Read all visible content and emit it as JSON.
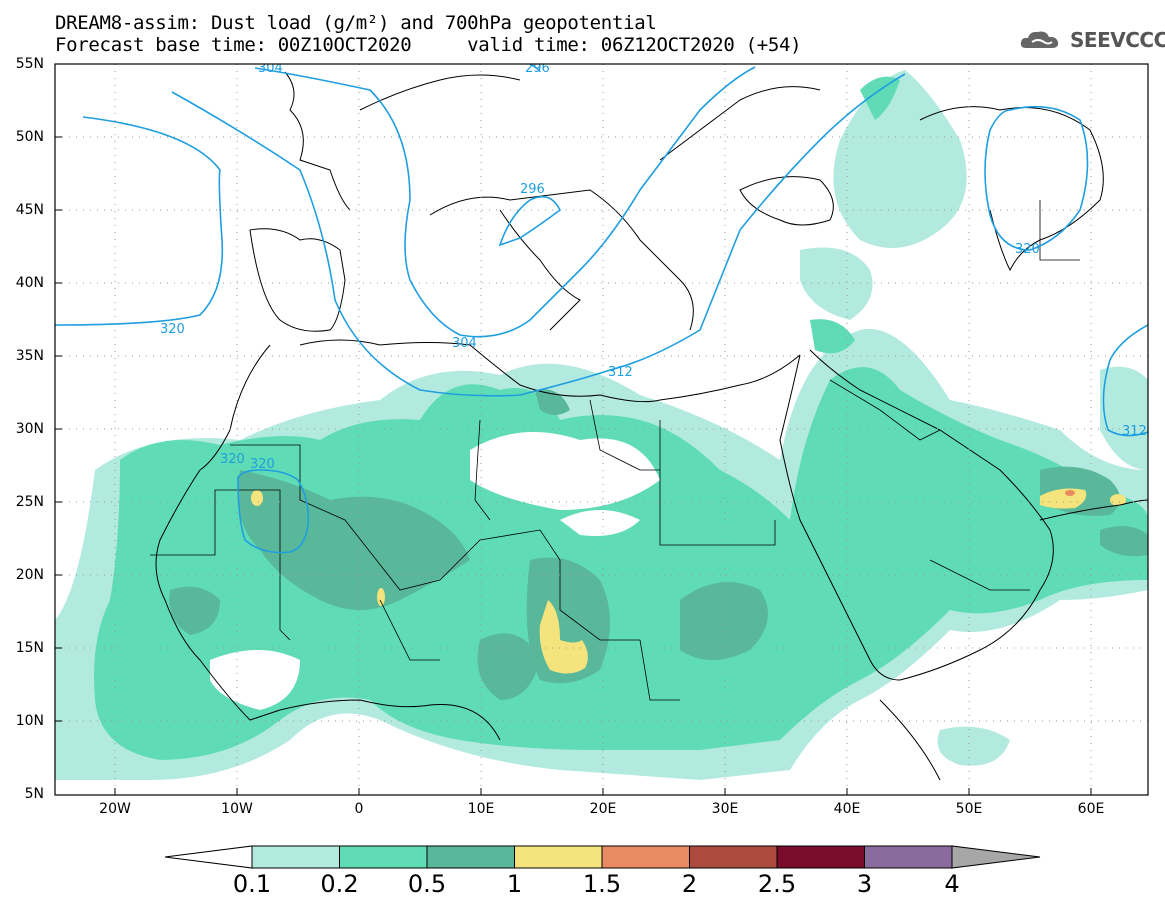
{
  "header": {
    "title_line1": "DREAM8-assim: Dust load (g/m²) and 700hPa geopotential",
    "title_line2": "Forecast base time: 00Z10OCT2020     valid time: 06Z12OCT2020 (+54)",
    "logo_text": "SEEVCCC",
    "logo_icon": "cloud-logo-icon"
  },
  "map": {
    "lat_labels": [
      "55N",
      "50N",
      "45N",
      "40N",
      "35N",
      "30N",
      "25N",
      "20N",
      "15N",
      "10N",
      "5N"
    ],
    "lon_labels": [
      "20W",
      "10W",
      "0",
      "10E",
      "20E",
      "30E",
      "40E",
      "50E",
      "60E"
    ],
    "contour_labels": [
      "320",
      "304",
      "312",
      "296",
      "296",
      "320",
      "320",
      "320",
      "312",
      "304"
    ],
    "contour_color": "#1f9ee0",
    "grid": "dotted"
  },
  "legend": {
    "labels": [
      "0.1",
      "0.2",
      "0.5",
      "1",
      "1.5",
      "2",
      "2.5",
      "3",
      "4"
    ],
    "colors": [
      "#ffffff",
      "#b3eae0",
      "#5fdcb5",
      "#5ab89a",
      "#f5e47e",
      "#e98a62",
      "#ac4a3e",
      "#7a0c2c",
      "#8b6a9e",
      "#a7a7a7"
    ]
  }
}
